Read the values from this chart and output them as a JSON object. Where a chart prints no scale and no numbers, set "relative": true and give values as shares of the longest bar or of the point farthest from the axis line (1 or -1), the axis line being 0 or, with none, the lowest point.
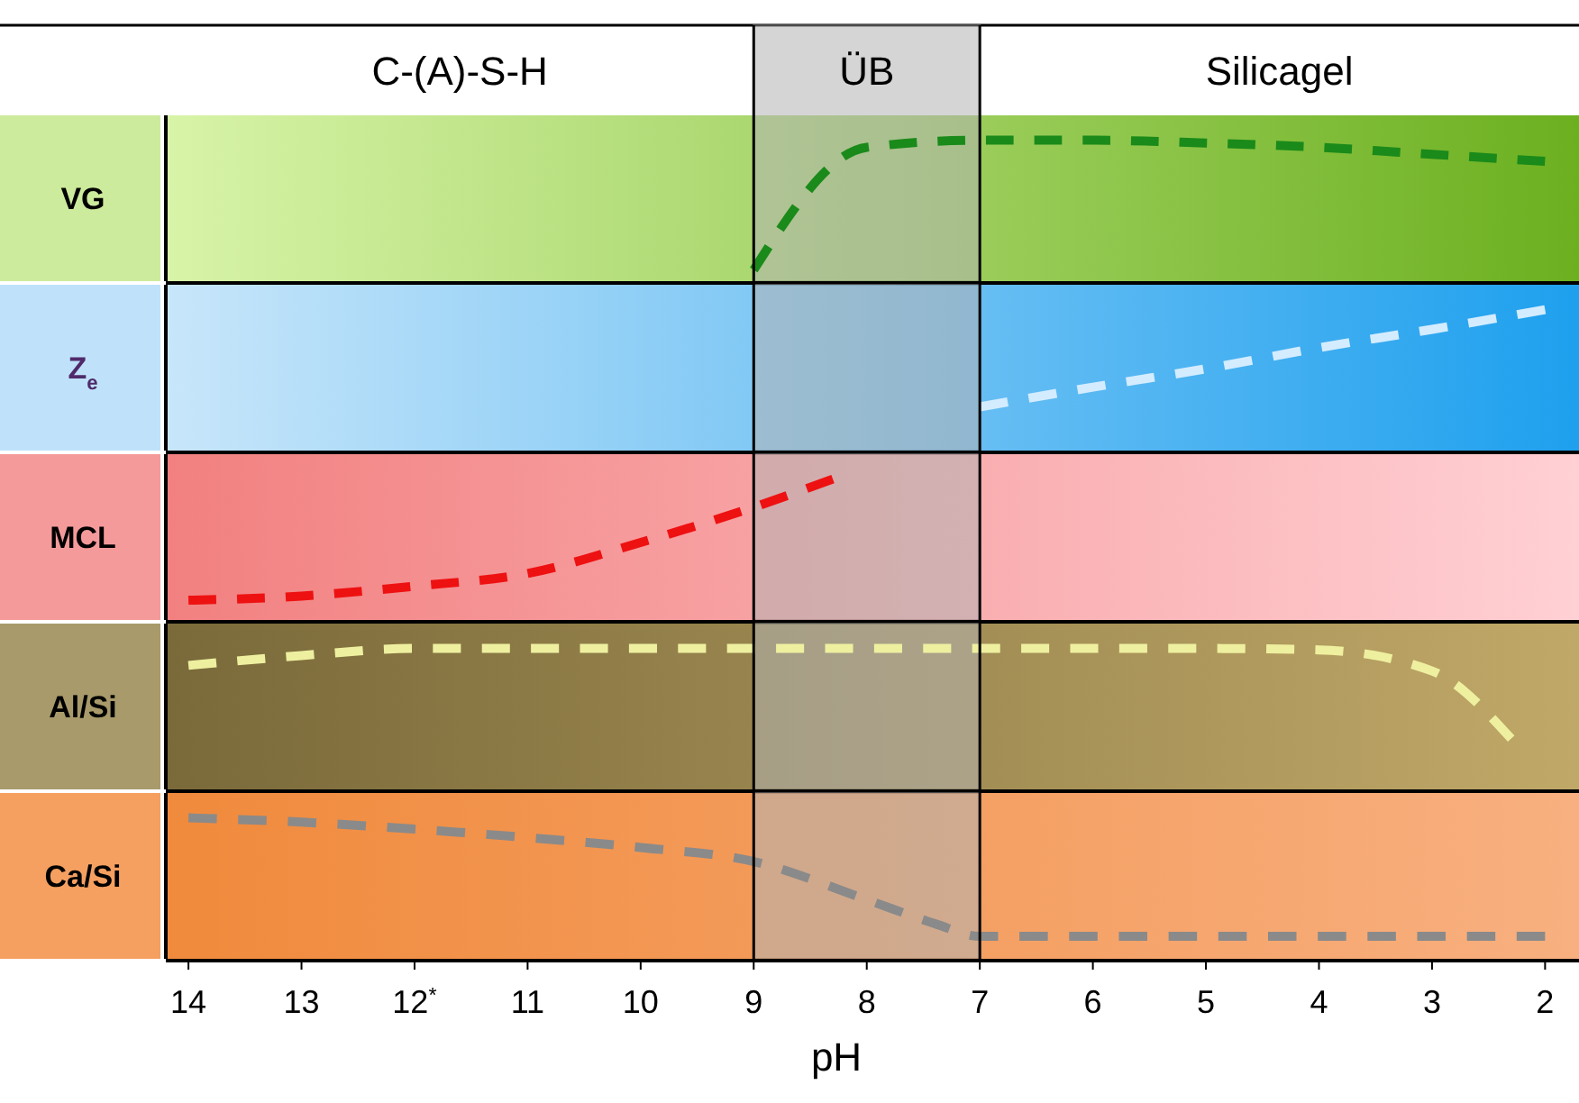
{
  "chart_data": [
    {
      "type": "line",
      "relative": true,
      "ylabel": "VG",
      "x": [
        9,
        8,
        7,
        6,
        5,
        4,
        3,
        2
      ],
      "values": [
        0.08,
        0.95,
        1,
        1,
        0.98,
        0.95,
        0.9,
        0.85
      ],
      "color": "#1a8a1a",
      "line_style": "dashed",
      "xlim": [
        14.2,
        1.7
      ],
      "tick_labels": false,
      "annotations": [
        "C-(A)-S-H",
        "Silicagel"
      ],
      "bands": [
        {
          "axis": "x",
          "from": 9,
          "to": 7,
          "label": "ÜB",
          "color": "#b4b4b4"
        }
      ]
    },
    {
      "type": "line",
      "relative": true,
      "ylabel": "Z$_{e}$",
      "x": [
        7,
        6,
        5,
        4,
        3,
        2
      ],
      "values": [
        0.31,
        0.45,
        0.58,
        0.73,
        0.86,
        1
      ],
      "color": "#d4ecff",
      "line_style": "dashed",
      "xlim": [
        14.2,
        1.7
      ],
      "tick_labels": false,
      "bands": [
        {
          "axis": "x",
          "from": 9,
          "to": 7,
          "color": "#b4b4b4"
        }
      ]
    },
    {
      "type": "line",
      "relative": true,
      "ylabel": "MCL",
      "x": [
        14,
        13,
        12,
        11,
        10,
        9,
        8.3
      ],
      "values": [
        0.14,
        0.17,
        0.24,
        0.33,
        0.55,
        0.8,
        1
      ],
      "color": "#ee1111",
      "line_style": "dashed",
      "xlim": [
        14.2,
        1.7
      ],
      "tick_labels": false,
      "bands": [
        {
          "axis": "x",
          "from": 9,
          "to": 7,
          "color": "#b4b4b4"
        }
      ]
    },
    {
      "type": "line",
      "relative": true,
      "ylabel": "Al/Si",
      "x": [
        14,
        13,
        12,
        11,
        10,
        9,
        8,
        7,
        6,
        5,
        4,
        3,
        2.3
      ],
      "values": [
        0.88,
        0.95,
        1,
        1,
        1,
        1,
        1,
        1,
        1,
        1,
        0.99,
        0.84,
        0.36
      ],
      "color": "#eef0a0",
      "line_style": "dashed",
      "xlim": [
        14.2,
        1.7
      ],
      "tick_labels": false,
      "bands": [
        {
          "axis": "x",
          "from": 9,
          "to": 7,
          "color": "#b4b4b4"
        }
      ]
    },
    {
      "type": "line",
      "relative": true,
      "ylabel": "Ca/Si",
      "x": [
        14,
        13,
        12,
        11,
        10,
        9,
        8,
        7.4,
        7,
        6,
        5,
        4,
        3,
        2
      ],
      "values": [
        1,
        0.97,
        0.92,
        0.86,
        0.79,
        0.69,
        0.42,
        0.25,
        0.16,
        0.16,
        0.16,
        0.16,
        0.16,
        0.16
      ],
      "color": "#8a8a8a",
      "line_style": "dashed",
      "xlim": [
        14.2,
        1.7
      ],
      "tick_labels": "x",
      "xlabel": "pH",
      "xticks": [
        14,
        13,
        {
          "value": 12,
          "label": "12$^{*}$"
        },
        11,
        10,
        9,
        8,
        7,
        6,
        5,
        4,
        3,
        2
      ],
      "bands": [
        {
          "axis": "x",
          "from": 9,
          "to": 7,
          "color": "#b4b4b4"
        }
      ]
    }
  ]
}
